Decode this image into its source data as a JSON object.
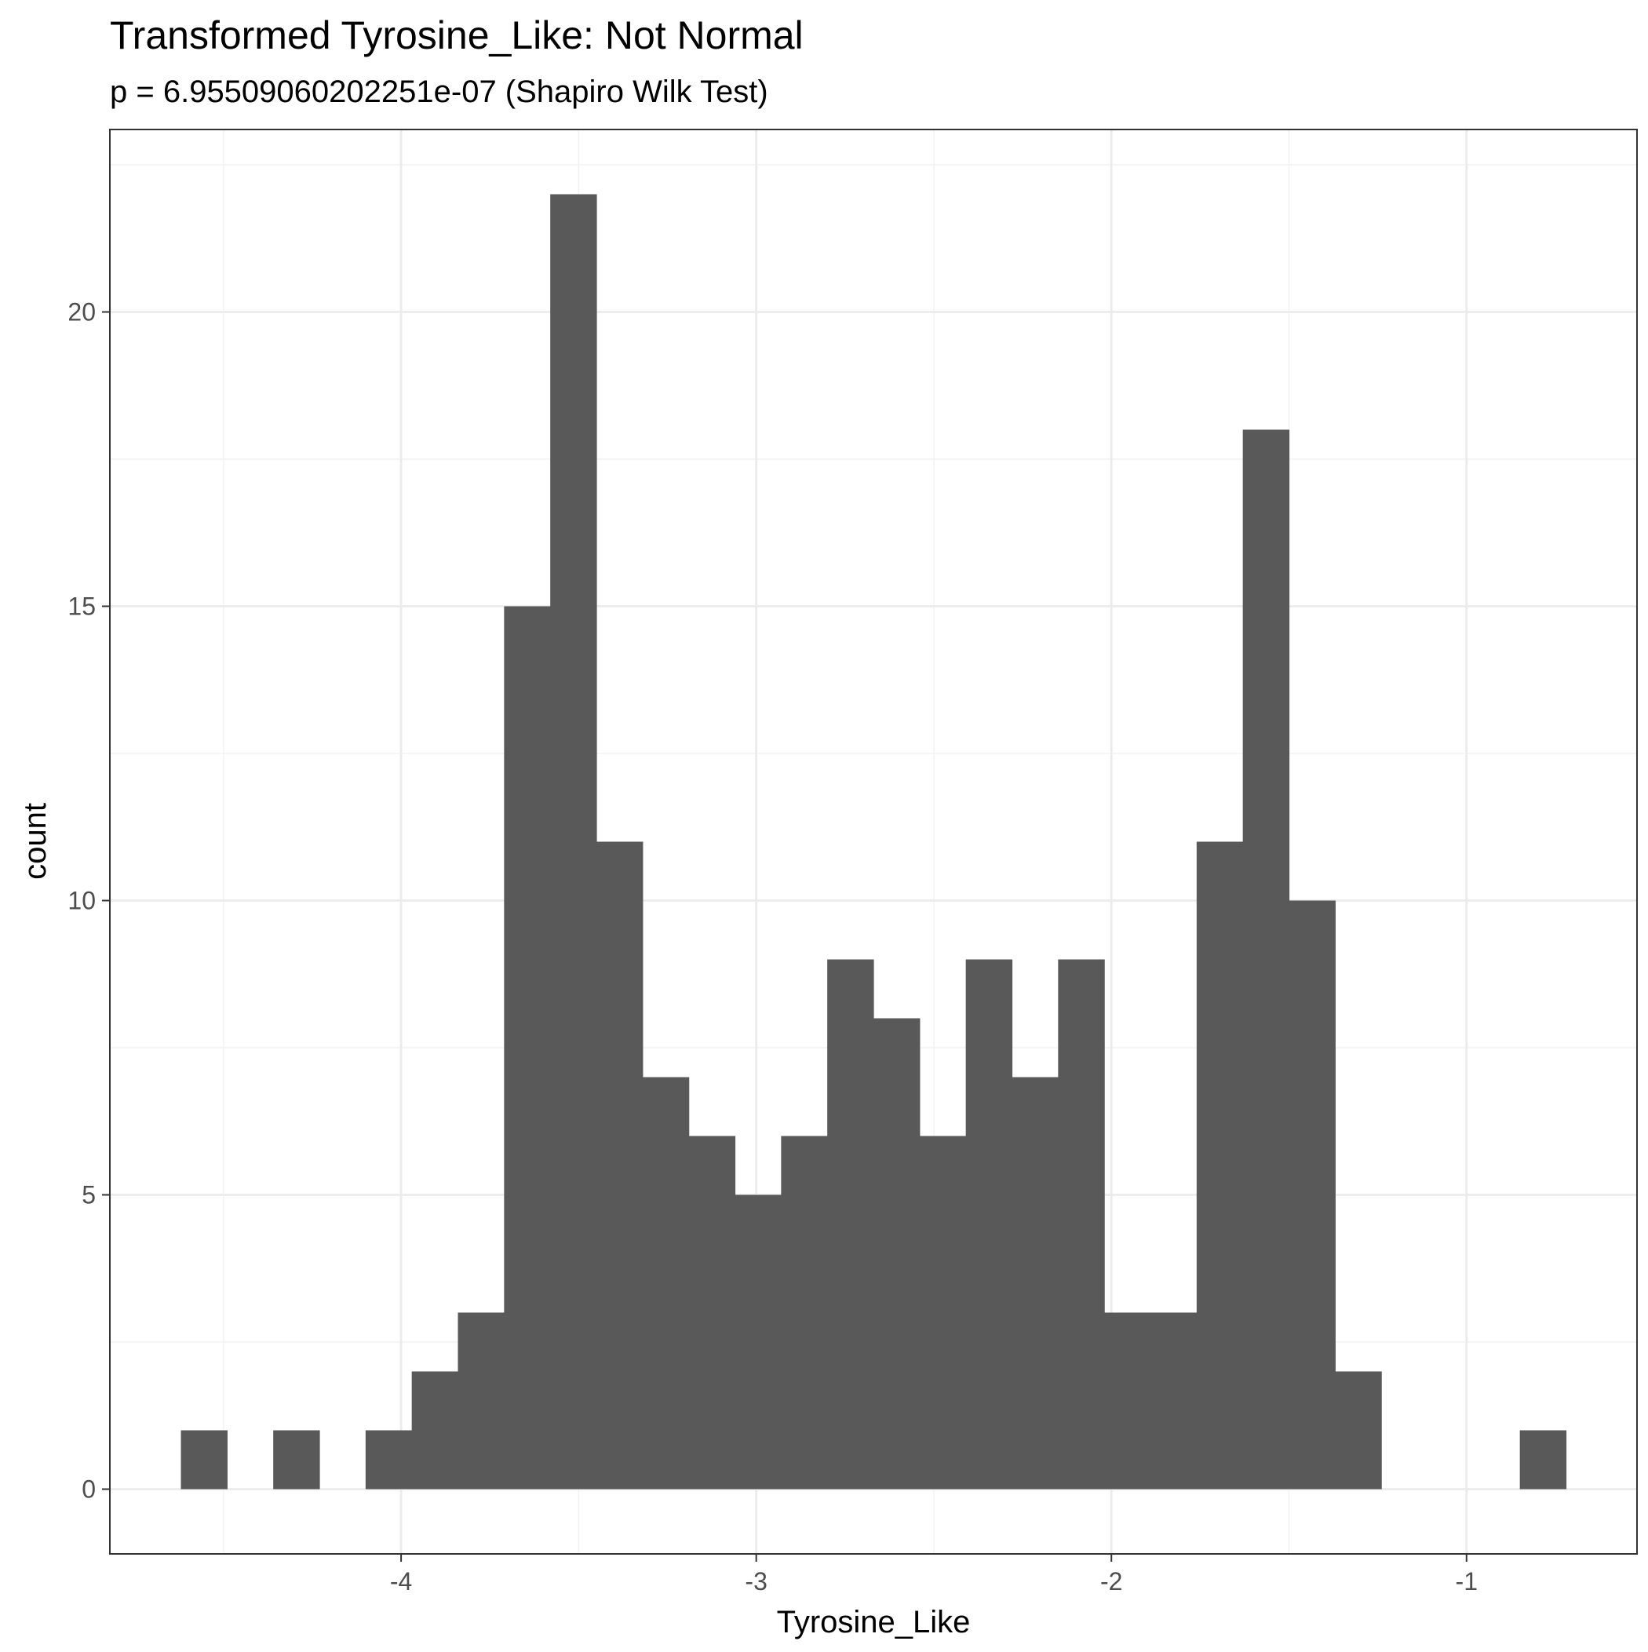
{
  "chart_data": {
    "type": "bar",
    "title": "Transformed Tyrosine_Like: Not Normal",
    "subtitle": "p = 6.95509060202251e-07 (Shapiro Wilk Test)",
    "xlabel": "Tyrosine_Like",
    "ylabel": "count",
    "xlim": [
      -4.82,
      -0.52
    ],
    "ylim": [
      -1.1,
      23.1
    ],
    "x_ticks": [
      {
        "value": -4,
        "label": "-4"
      },
      {
        "value": -3,
        "label": "-3"
      },
      {
        "value": -2,
        "label": "-2"
      },
      {
        "value": -1,
        "label": "-1"
      }
    ],
    "y_ticks": [
      {
        "value": 0,
        "label": "0"
      },
      {
        "value": 5,
        "label": "5"
      },
      {
        "value": 10,
        "label": "10"
      },
      {
        "value": 15,
        "label": "15"
      },
      {
        "value": 20,
        "label": "20"
      }
    ],
    "bin_start": -4.62,
    "bin_width": 0.13,
    "counts": [
      1,
      0,
      1,
      0,
      1,
      2,
      3,
      15,
      22,
      11,
      7,
      6,
      5,
      6,
      9,
      8,
      6,
      9,
      7,
      9,
      3,
      3,
      11,
      18,
      10,
      2,
      0,
      0,
      0,
      1
    ],
    "bar_color": "#595959",
    "grid": true,
    "legend": "none"
  }
}
